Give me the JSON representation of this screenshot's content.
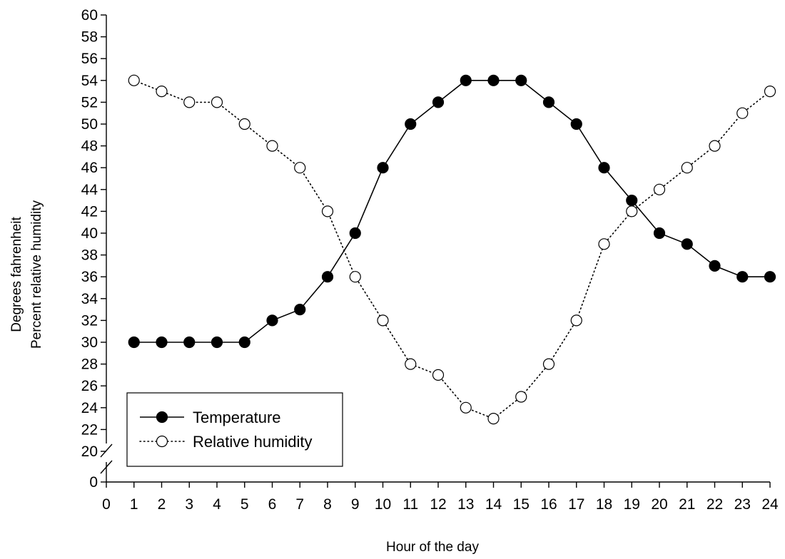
{
  "chart_data": {
    "type": "line",
    "title": "",
    "xlabel": "Hour of the day",
    "ylabel_lines": [
      "Degrees fahrenheit",
      "Percent relative humidity"
    ],
    "xlim": [
      0,
      24
    ],
    "ylim": [
      20,
      60
    ],
    "y_axis_break": {
      "from": 0,
      "to": 20
    },
    "x_ticks": [
      "0",
      "1",
      "2",
      "3",
      "4",
      "5",
      "6",
      "7",
      "8",
      "9",
      "10",
      "11",
      "12",
      "13",
      "14",
      "15",
      "16",
      "17",
      "18",
      "19",
      "20",
      "21",
      "22",
      "23",
      "24"
    ],
    "y_ticks": [
      "0",
      "20",
      "22",
      "24",
      "26",
      "28",
      "30",
      "32",
      "34",
      "36",
      "38",
      "40",
      "42",
      "44",
      "46",
      "48",
      "50",
      "52",
      "54",
      "56",
      "58",
      "60"
    ],
    "grid": false,
    "legend_position": "bottom-left",
    "x": [
      1,
      2,
      3,
      4,
      5,
      6,
      7,
      8,
      9,
      10,
      11,
      12,
      13,
      14,
      15,
      16,
      17,
      18,
      19,
      20,
      21,
      22,
      23,
      24
    ],
    "series": [
      {
        "name": "Temperature",
        "marker": "filled-circle",
        "line_style": "solid",
        "color": "#000000",
        "values": [
          30,
          30,
          30,
          30,
          30,
          32,
          33,
          36,
          40,
          46,
          50,
          52,
          54,
          54,
          54,
          52,
          50,
          46,
          43,
          40,
          39,
          37,
          36,
          36
        ]
      },
      {
        "name": "Relative humidity",
        "marker": "open-circle",
        "line_style": "dotted",
        "color": "#000000",
        "values": [
          54,
          53,
          52,
          52,
          50,
          48,
          46,
          42,
          36,
          32,
          28,
          27,
          24,
          23,
          25,
          28,
          32,
          39,
          42,
          44,
          46,
          48,
          51,
          53
        ]
      }
    ]
  }
}
